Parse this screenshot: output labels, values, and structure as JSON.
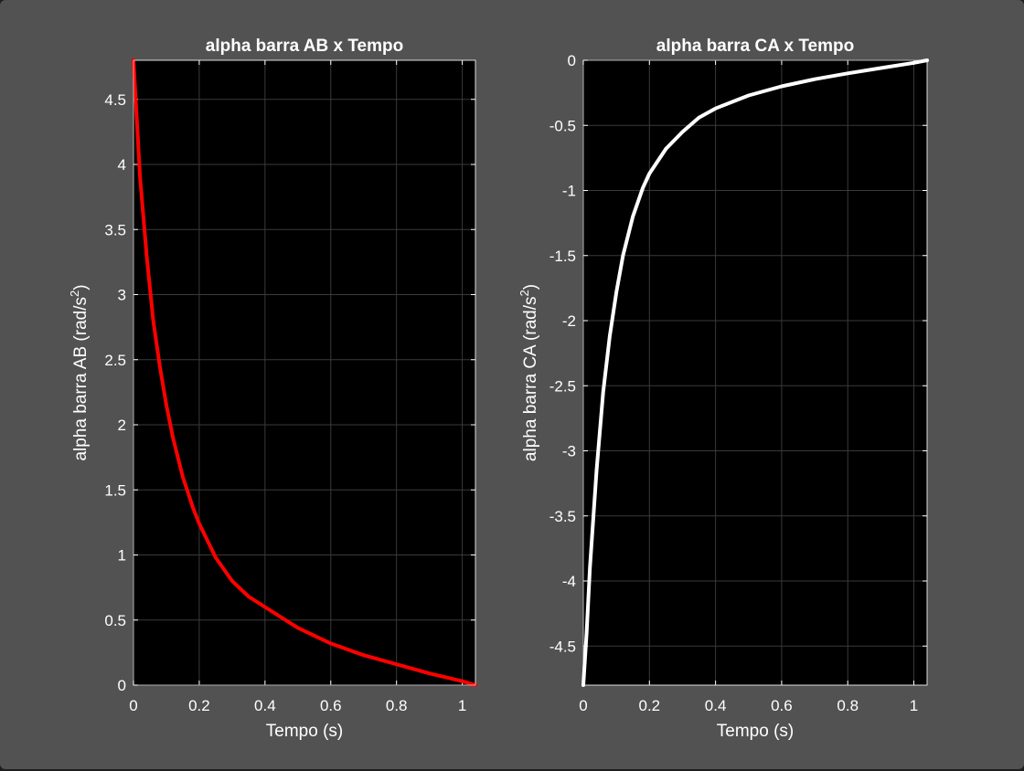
{
  "chart_data": [
    {
      "type": "line",
      "title": "alpha barra AB x Tempo",
      "xlabel": "Tempo (s)",
      "ylabel": "alpha barra AB (rad/s",
      "ylabel_sup": "2",
      "ylabel_close": ")",
      "xlim": [
        0,
        1.04
      ],
      "ylim": [
        0,
        4.8
      ],
      "xticks": [
        "0",
        "0.2",
        "0.4",
        "0.6",
        "0.8",
        "1"
      ],
      "yticks": [
        "0",
        "0.5",
        "1",
        "1.5",
        "2",
        "2.5",
        "3",
        "3.5",
        "4",
        "4.5"
      ],
      "grid": true,
      "series": [
        {
          "color": "#ff0000",
          "x": [
            0,
            0.02,
            0.04,
            0.06,
            0.08,
            0.1,
            0.12,
            0.15,
            0.18,
            0.2,
            0.25,
            0.3,
            0.35,
            0.4,
            0.5,
            0.6,
            0.7,
            0.8,
            0.9,
            1.0,
            1.04
          ],
          "y": [
            4.8,
            3.9,
            3.3,
            2.8,
            2.45,
            2.15,
            1.9,
            1.6,
            1.37,
            1.24,
            0.98,
            0.8,
            0.68,
            0.6,
            0.44,
            0.32,
            0.23,
            0.16,
            0.09,
            0.03,
            0
          ]
        }
      ]
    },
    {
      "type": "line",
      "title": "alpha barra CA x Tempo",
      "xlabel": "Tempo (s)",
      "ylabel": "alpha barra CA (rad/s",
      "ylabel_sup": "2",
      "ylabel_close": ")",
      "xlim": [
        0,
        1.04
      ],
      "ylim": [
        -4.8,
        0
      ],
      "xticks": [
        "0",
        "0.2",
        "0.4",
        "0.6",
        "0.8",
        "1"
      ],
      "yticks": [
        "0",
        "-0.5",
        "-1",
        "-1.5",
        "-2",
        "-2.5",
        "-3",
        "-3.5",
        "-4",
        "-4.5"
      ],
      "grid": true,
      "series": [
        {
          "color": "#ffffff",
          "x": [
            0,
            0.01,
            0.02,
            0.04,
            0.06,
            0.08,
            0.1,
            0.12,
            0.15,
            0.18,
            0.2,
            0.25,
            0.3,
            0.35,
            0.4,
            0.5,
            0.6,
            0.7,
            0.8,
            0.9,
            1.0,
            1.04
          ],
          "y": [
            -4.8,
            -4.4,
            -3.9,
            -3.15,
            -2.55,
            -2.12,
            -1.78,
            -1.5,
            -1.2,
            -0.98,
            -0.87,
            -0.68,
            -0.55,
            -0.44,
            -0.37,
            -0.27,
            -0.2,
            -0.145,
            -0.1,
            -0.06,
            -0.02,
            0
          ]
        }
      ]
    }
  ]
}
